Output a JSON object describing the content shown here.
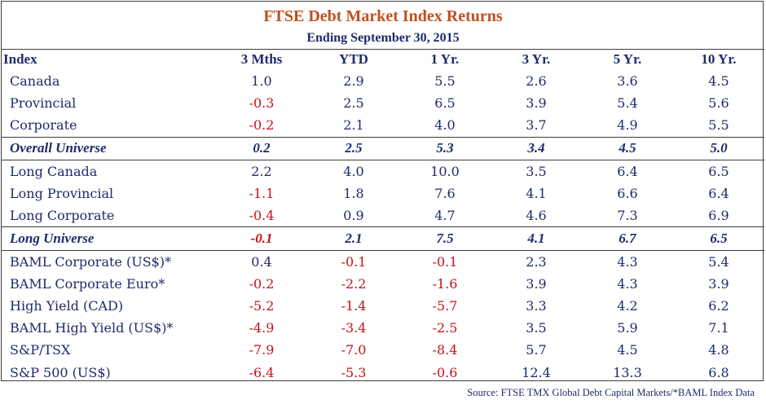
{
  "title": "FTSE Debt Market Index Returns",
  "subtitle": "Ending September 30, 2015",
  "columns": [
    "Index",
    "3 Mths",
    "YTD",
    "1 Yr.",
    "3 Yr.",
    "5 Yr.",
    "10 Yr."
  ],
  "rows": [
    {
      "name": "Canada",
      "values": [
        "1.0",
        "2.9",
        "5.5",
        "2.6",
        "3.6",
        "4.5"
      ]
    },
    {
      "name": "Provincial",
      "values": [
        "-0.3",
        "2.5",
        "6.5",
        "3.9",
        "5.4",
        "5.6"
      ]
    },
    {
      "name": "Corporate",
      "values": [
        "-0.2",
        "2.1",
        "4.0",
        "3.7",
        "4.9",
        "5.5"
      ]
    },
    {
      "name": "Overall Universe",
      "values": [
        "0.2",
        "2.5",
        "5.3",
        "3.4",
        "4.5",
        "5.0"
      ]
    },
    {
      "name": "Long Canada",
      "values": [
        "2.2",
        "4.0",
        "10.0",
        "3.5",
        "6.4",
        "6.5"
      ]
    },
    {
      "name": "Long Provincial",
      "values": [
        "-1.1",
        "1.8",
        "7.6",
        "4.1",
        "6.6",
        "6.4"
      ]
    },
    {
      "name": "Long Corporate",
      "values": [
        "-0.4",
        "0.9",
        "4.7",
        "4.6",
        "7.3",
        "6.9"
      ]
    },
    {
      "name": "Long Universe",
      "values": [
        "-0.1",
        "2.1",
        "7.5",
        "4.1",
        "6.7",
        "6.5"
      ]
    },
    {
      "name": "BAML Corporate (US$)*",
      "values": [
        "0.4",
        "-0.1",
        "-0.1",
        "2.3",
        "4.3",
        "5.4"
      ]
    },
    {
      "name": "BAML Corporate Euro*",
      "values": [
        "-0.2",
        "-2.2",
        "-1.6",
        "3.9",
        "4.3",
        "3.9"
      ]
    },
    {
      "name": "High Yield (CAD)",
      "values": [
        "-5.2",
        "-1.4",
        "-5.7",
        "3.3",
        "4.2",
        "6.2"
      ]
    },
    {
      "name": "BAML High Yield (US$)*",
      "values": [
        "-4.9",
        "-3.4",
        "-2.5",
        "3.5",
        "5.9",
        "7.1"
      ]
    },
    {
      "name": "S&P/TSX",
      "values": [
        "-7.9",
        "-7.0",
        "-8.4",
        "5.7",
        "4.5",
        "4.8"
      ]
    },
    {
      "name": "S&P 500 (US$)",
      "values": [
        "-6.4",
        "-5.3",
        "-0.6",
        "12.4",
        "13.3",
        "6.8"
      ]
    }
  ],
  "source": "Source: FTSE TMX Global Debt Capital Markets/*BAML Index Data",
  "colors": {
    "title": "#c0501f",
    "text": "#1f2a6b",
    "negative": "#c0141a"
  }
}
